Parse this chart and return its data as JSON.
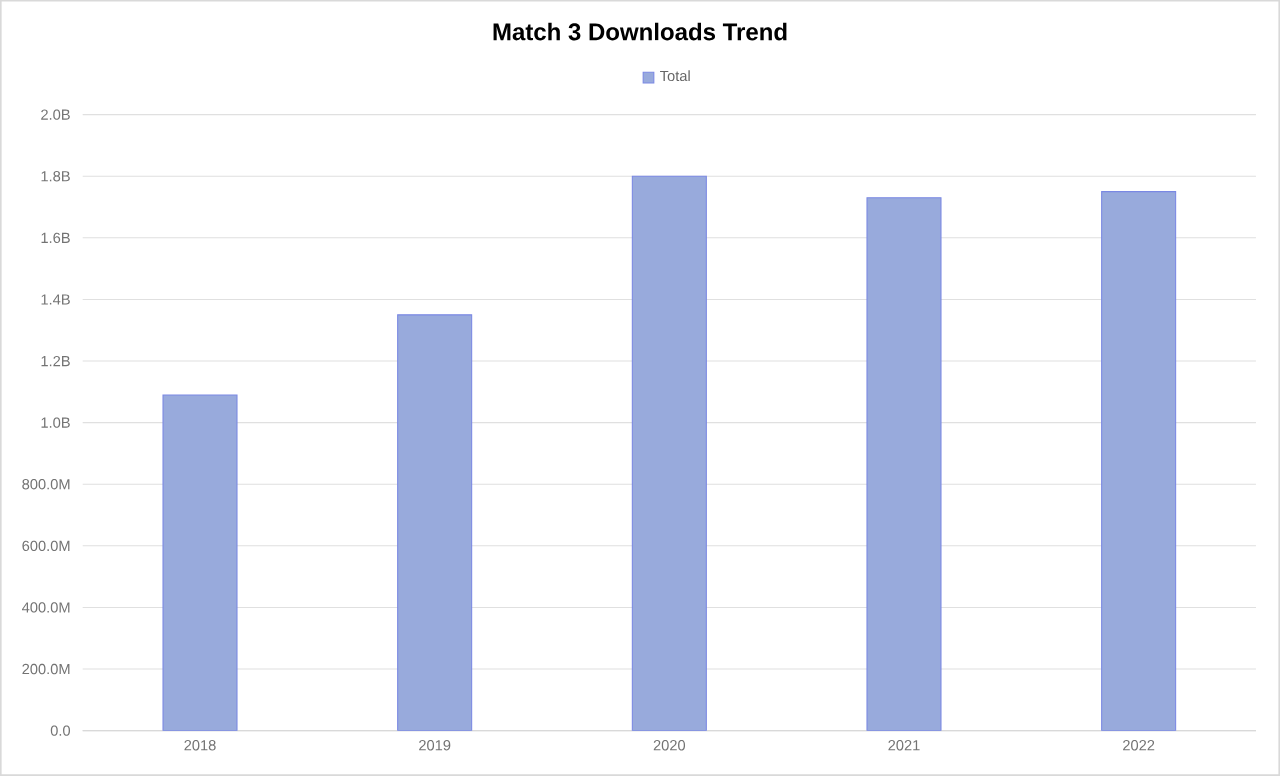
{
  "chart_data": {
    "type": "bar",
    "title": "Match 3 Downloads Trend",
    "categories": [
      "2018",
      "2019",
      "2020",
      "2021",
      "2022"
    ],
    "series": [
      {
        "name": "Total",
        "color": "#98aadc",
        "values": [
          1090000000,
          1350000000,
          1800000000,
          1730000000,
          1750000000
        ]
      }
    ],
    "ylim": [
      0,
      2000000000
    ],
    "yticks": [
      {
        "value": 0,
        "label": "0.0"
      },
      {
        "value": 200000000,
        "label": "200.0M"
      },
      {
        "value": 400000000,
        "label": "400.0M"
      },
      {
        "value": 600000000,
        "label": "600.0M"
      },
      {
        "value": 800000000,
        "label": "800.0M"
      },
      {
        "value": 1000000000,
        "label": "1.0B"
      },
      {
        "value": 1200000000,
        "label": "1.2B"
      },
      {
        "value": 1400000000,
        "label": "1.4B"
      },
      {
        "value": 1600000000,
        "label": "1.6B"
      },
      {
        "value": 1800000000,
        "label": "1.8B"
      },
      {
        "value": 2000000000,
        "label": "2.0B"
      }
    ],
    "grid": "y",
    "legend": "top"
  }
}
